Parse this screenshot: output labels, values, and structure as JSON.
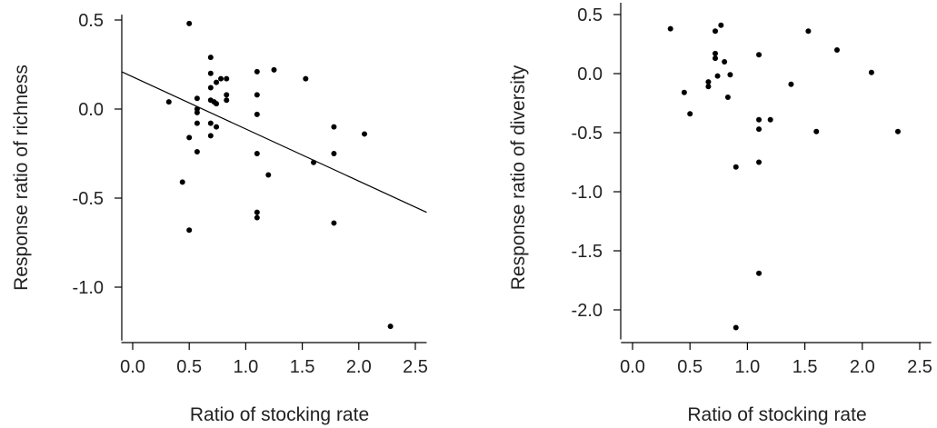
{
  "chart_data": [
    {
      "type": "scatter",
      "xlabel": "Ratio of stocking rate",
      "ylabel": "Response ratio of richness",
      "xlim": [
        -0.1,
        2.6
      ],
      "ylim": [
        -1.3,
        0.53
      ],
      "x_ticks": [
        0.0,
        0.5,
        1.0,
        1.5,
        2.0,
        2.5
      ],
      "x_tick_labels": [
        "0.0",
        "0.5",
        "1.0",
        "1.5",
        "2.0",
        "2.5"
      ],
      "y_ticks": [
        0.5,
        0.0,
        -0.5,
        -1.0
      ],
      "y_tick_labels": [
        "0.5",
        "0.0",
        "-0.5",
        "-1.0"
      ],
      "grid": false,
      "trendline": {
        "x": [
          -0.1,
          2.6
        ],
        "y": [
          0.21,
          -0.58
        ]
      },
      "points": [
        {
          "x": 0.32,
          "y": 0.04
        },
        {
          "x": 0.44,
          "y": -0.41
        },
        {
          "x": 0.5,
          "y": 0.48
        },
        {
          "x": 0.5,
          "y": -0.16
        },
        {
          "x": 0.5,
          "y": -0.68
        },
        {
          "x": 0.57,
          "y": 0.06
        },
        {
          "x": 0.57,
          "y": 0.0
        },
        {
          "x": 0.57,
          "y": -0.02
        },
        {
          "x": 0.57,
          "y": -0.08
        },
        {
          "x": 0.57,
          "y": -0.24
        },
        {
          "x": 0.69,
          "y": 0.29
        },
        {
          "x": 0.69,
          "y": 0.2
        },
        {
          "x": 0.69,
          "y": 0.12
        },
        {
          "x": 0.69,
          "y": 0.05
        },
        {
          "x": 0.69,
          "y": -0.08
        },
        {
          "x": 0.69,
          "y": -0.15
        },
        {
          "x": 0.72,
          "y": 0.04
        },
        {
          "x": 0.74,
          "y": 0.15
        },
        {
          "x": 0.74,
          "y": 0.03
        },
        {
          "x": 0.74,
          "y": -0.1
        },
        {
          "x": 0.78,
          "y": 0.17
        },
        {
          "x": 0.83,
          "y": 0.17
        },
        {
          "x": 0.83,
          "y": 0.08
        },
        {
          "x": 0.83,
          "y": 0.05
        },
        {
          "x": 1.1,
          "y": 0.21
        },
        {
          "x": 1.1,
          "y": 0.08
        },
        {
          "x": 1.1,
          "y": -0.03
        },
        {
          "x": 1.1,
          "y": -0.25
        },
        {
          "x": 1.1,
          "y": -0.58
        },
        {
          "x": 1.1,
          "y": -0.61
        },
        {
          "x": 1.2,
          "y": -0.37
        },
        {
          "x": 1.25,
          "y": 0.22
        },
        {
          "x": 1.53,
          "y": 0.17
        },
        {
          "x": 1.6,
          "y": -0.3
        },
        {
          "x": 1.78,
          "y": -0.1
        },
        {
          "x": 1.78,
          "y": -0.25
        },
        {
          "x": 1.78,
          "y": -0.64
        },
        {
          "x": 2.05,
          "y": -0.14
        },
        {
          "x": 2.28,
          "y": -1.22
        }
      ]
    },
    {
      "type": "scatter",
      "xlabel": "Ratio of stocking rate",
      "ylabel": "Response ratio of diversity",
      "xlim": [
        -0.1,
        2.6
      ],
      "ylim": [
        -2.25,
        0.6
      ],
      "x_ticks": [
        0.0,
        0.5,
        1.0,
        1.5,
        2.0,
        2.5
      ],
      "x_tick_labels": [
        "0.0",
        "0.5",
        "1.0",
        "1.5",
        "2.0",
        "2.5"
      ],
      "y_ticks": [
        0.5,
        0.0,
        -0.5,
        -1.0,
        -1.5,
        -2.0
      ],
      "y_tick_labels": [
        "0.5",
        "0.0",
        "-0.5",
        "-1.0",
        "-1.5",
        "-2.0"
      ],
      "grid": false,
      "points": [
        {
          "x": 0.33,
          "y": 0.38
        },
        {
          "x": 0.45,
          "y": -0.16
        },
        {
          "x": 0.5,
          "y": -0.34
        },
        {
          "x": 0.66,
          "y": -0.07
        },
        {
          "x": 0.66,
          "y": -0.11
        },
        {
          "x": 0.72,
          "y": 0.36
        },
        {
          "x": 0.72,
          "y": 0.17
        },
        {
          "x": 0.72,
          "y": 0.13
        },
        {
          "x": 0.74,
          "y": -0.02
        },
        {
          "x": 0.77,
          "y": 0.41
        },
        {
          "x": 0.8,
          "y": 0.1
        },
        {
          "x": 0.83,
          "y": -0.2
        },
        {
          "x": 0.85,
          "y": -0.01
        },
        {
          "x": 0.9,
          "y": -0.79
        },
        {
          "x": 0.9,
          "y": -2.15
        },
        {
          "x": 1.1,
          "y": 0.16
        },
        {
          "x": 1.1,
          "y": -0.39
        },
        {
          "x": 1.1,
          "y": -0.47
        },
        {
          "x": 1.1,
          "y": -0.75
        },
        {
          "x": 1.1,
          "y": -1.69
        },
        {
          "x": 1.2,
          "y": -0.39
        },
        {
          "x": 1.38,
          "y": -0.09
        },
        {
          "x": 1.53,
          "y": 0.36
        },
        {
          "x": 1.6,
          "y": -0.49
        },
        {
          "x": 1.78,
          "y": 0.2
        },
        {
          "x": 2.08,
          "y": 0.01
        },
        {
          "x": 2.31,
          "y": -0.49
        }
      ]
    }
  ]
}
